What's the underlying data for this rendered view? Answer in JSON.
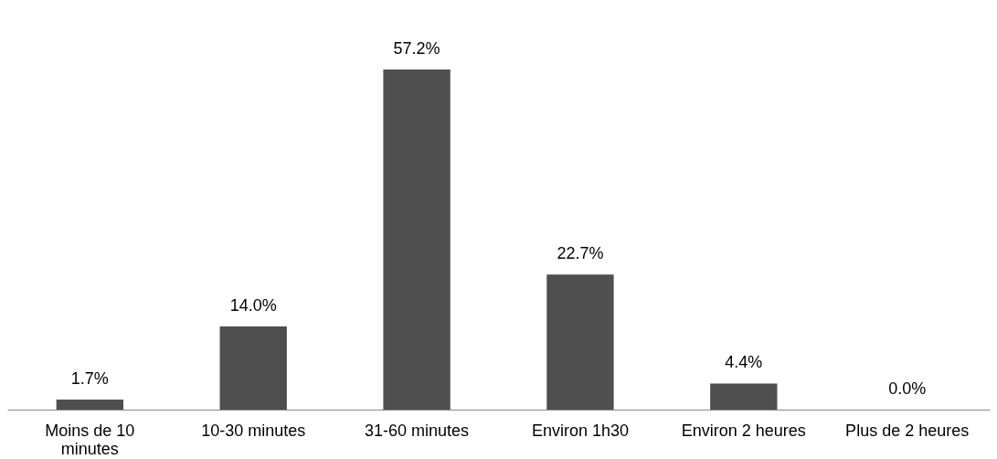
{
  "chart_data": {
    "type": "bar",
    "categories": [
      "Moins de 10 minutes",
      "10-30 minutes",
      "31-60 minutes",
      "Environ 1h30",
      "Environ 2 heures",
      "Plus de 2 heures"
    ],
    "values": [
      1.7,
      14.0,
      57.2,
      22.7,
      4.4,
      0.0
    ],
    "value_labels": [
      "1.7%",
      "14.0%",
      "57.2%",
      "22.7%",
      "4.4%",
      "0.0%"
    ],
    "color": "#4f4f4f"
  }
}
